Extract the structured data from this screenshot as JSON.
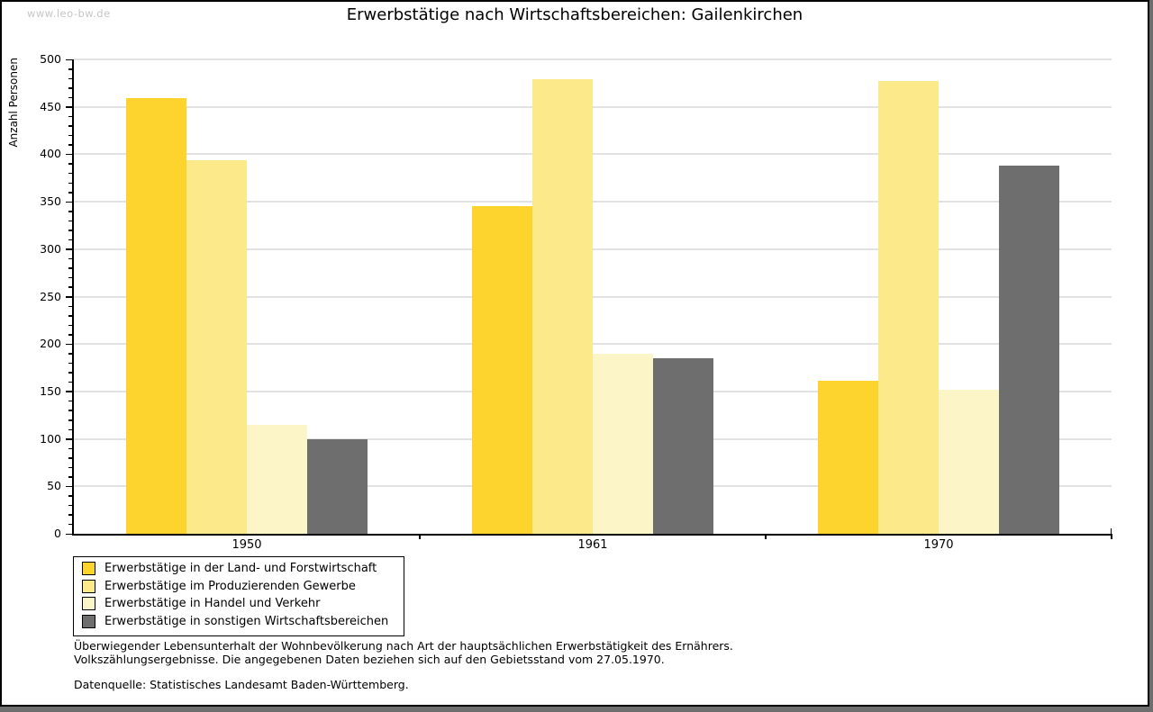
{
  "watermark": "www.leo-bw.de",
  "title": "Erwerbstätige nach Wirtschaftsbereichen: Gailenkirchen",
  "chart_data": {
    "type": "bar",
    "title": "Erwerbstätige nach Wirtschaftsbereichen: Gailenkirchen",
    "xlabel": "",
    "ylabel": "Anzahl Personen",
    "categories": [
      "1950",
      "1961",
      "1970"
    ],
    "series": [
      {
        "name": "Erwerbstätige in der Land- und Forstwirtschaft",
        "color": "#FCD42D",
        "values": [
          459,
          345,
          161
        ]
      },
      {
        "name": "Erwerbstätige im Produzierenden Gewerbe",
        "color": "#FCE98A",
        "values": [
          394,
          479,
          477
        ]
      },
      {
        "name": "Erwerbstätige in Handel und Verkehr",
        "color": "#FCF5C8",
        "values": [
          115,
          190,
          152
        ]
      },
      {
        "name": "Erwerbstätige in sonstigen Wirtschaftsbereichen",
        "color": "#6E6E6E",
        "values": [
          100,
          185,
          388
        ]
      }
    ],
    "ylim": [
      0,
      500
    ],
    "ytick_step": 50,
    "yminor_step": 10,
    "grid": "horizontal",
    "legend_position": "bottom-left"
  },
  "colors": {
    "grid": "#E2E2E2",
    "axis": "#000000",
    "watermark": "#C6C6C6",
    "frame_shadow": "#6E6E6E",
    "background": "#FFFFFF"
  },
  "footnotes": {
    "line1": "Überwiegender Lebensunterhalt der Wohnbevölkerung nach Art der hauptsächlichen Erwerbstätigkeit des Ernährers.",
    "line2": "Volkszählungsergebnisse. Die angegebenen Daten beziehen sich auf den Gebietsstand vom 27.05.1970.",
    "source": "Datenquelle: Statistisches Landesamt Baden-Württemberg."
  }
}
